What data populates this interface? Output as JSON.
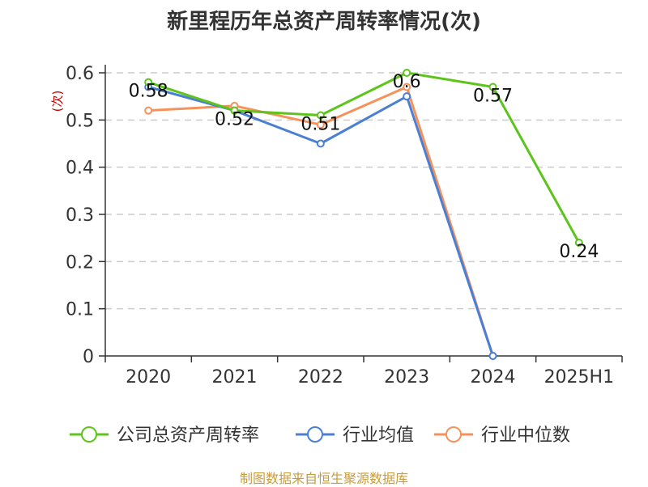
{
  "chart_data": {
    "type": "line",
    "title": "新里程历年总资产周转率情况(次)",
    "ylabel": "(次)",
    "xlabel": "",
    "categories": [
      "2020",
      "2021",
      "2022",
      "2023",
      "2024",
      "2025H1"
    ],
    "yticks": [
      "0",
      "0.1",
      "0.2",
      "0.3",
      "0.4",
      "0.5",
      "0.6"
    ],
    "ylim": [
      0,
      0.6
    ],
    "grid": true,
    "legend_position": "bottom",
    "series": [
      {
        "name": "公司总资产周转率",
        "color": "#5cc41a",
        "values": [
          0.58,
          0.52,
          0.51,
          0.6,
          0.57,
          0.24
        ],
        "labels": [
          "0.58",
          "0.52",
          "0.51",
          "0.6",
          "0.57",
          "0.24"
        ]
      },
      {
        "name": "行业均值",
        "color": "#4a7fd4",
        "values": [
          0.57,
          0.52,
          0.45,
          0.55,
          0,
          null
        ]
      },
      {
        "name": "行业中位数",
        "color": "#f5925a",
        "values": [
          0.52,
          0.53,
          0.49,
          0.57,
          0,
          null
        ]
      }
    ]
  },
  "footer": {
    "source": "制图数据来自恒生聚源数据库"
  }
}
